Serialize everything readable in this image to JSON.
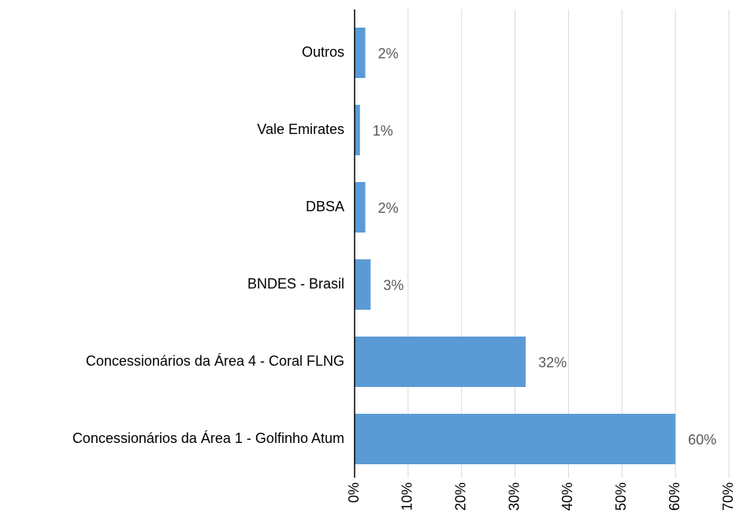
{
  "chart_data": {
    "type": "barh",
    "categories": [
      "Outros",
      "Vale Emirates",
      "DBSA",
      "BNDES - Brasil",
      "Concessionários da Área 4 - Coral FLNG",
      "Concessionários da Área 1 - Golfinho Atum"
    ],
    "values": [
      2,
      1,
      2,
      3,
      32,
      60
    ],
    "value_labels": [
      "2%",
      "1%",
      "2%",
      "3%",
      "32%",
      "60%"
    ],
    "color": "#5b9bd5",
    "xlim": [
      0,
      70
    ],
    "xticks": [
      {
        "value": 0,
        "label": "0%"
      },
      {
        "value": 10,
        "label": "10%"
      },
      {
        "value": 20,
        "label": "20%"
      },
      {
        "value": 30,
        "label": "30%"
      },
      {
        "value": 40,
        "label": "40%"
      },
      {
        "value": 50,
        "label": "50%"
      },
      {
        "value": 60,
        "label": "60%"
      },
      {
        "value": 70,
        "label": "70%"
      }
    ],
    "grid": true
  }
}
